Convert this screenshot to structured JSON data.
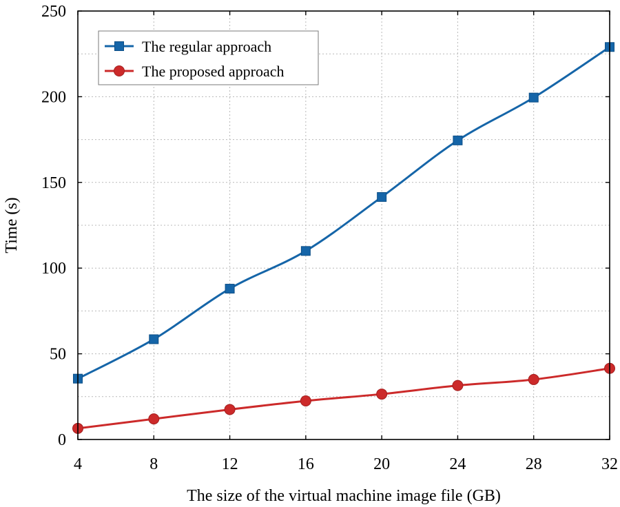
{
  "chart_data": {
    "type": "line",
    "title": "",
    "xlabel": "The size of the virtual machine image file (GB)",
    "ylabel": "Time (s)",
    "x": [
      4,
      8,
      12,
      16,
      20,
      24,
      28,
      32
    ],
    "xlim": [
      4,
      32
    ],
    "ylim": [
      0,
      250
    ],
    "x_ticks": [
      "4",
      "8",
      "12",
      "16",
      "20",
      "24",
      "28",
      "32"
    ],
    "y_ticks": [
      "0",
      "50",
      "100",
      "150",
      "200",
      "250"
    ],
    "y_tick_values": [
      0,
      50,
      100,
      150,
      200,
      250
    ],
    "grid": true,
    "legend_position": "top-left",
    "series": [
      {
        "name": "The regular approach",
        "color": "#1565a8",
        "marker": "square",
        "values": [
          35.5,
          58.5,
          88,
          110,
          141.5,
          174.5,
          199.5,
          229
        ]
      },
      {
        "name": "The proposed approach",
        "color": "#cc2a2a",
        "marker": "circle",
        "values": [
          6.5,
          12,
          17.5,
          22.5,
          26.5,
          31.5,
          35,
          41.5
        ]
      }
    ]
  }
}
